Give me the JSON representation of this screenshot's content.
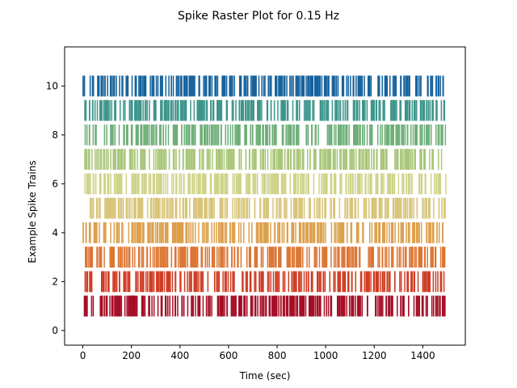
{
  "chart_data": {
    "type": "raster",
    "title": "Spike Raster Plot for 0.15 Hz",
    "xlabel": "Time (sec)",
    "ylabel": "Example Spike Trains",
    "xlim": [
      -75,
      1575
    ],
    "ylim": [
      -0.6,
      11.6
    ],
    "xticks": [
      0,
      200,
      400,
      600,
      800,
      1000,
      1200,
      1400
    ],
    "yticks": [
      0,
      2,
      4,
      6,
      8,
      10
    ],
    "line_length": 0.85,
    "grid": false,
    "legend": "none",
    "trains": [
      {
        "offset": 1,
        "color": "#a50f26",
        "n_spikes": 300,
        "t_start": 5,
        "t_end": 1495,
        "seed": 11
      },
      {
        "offset": 2,
        "color": "#cf3d24",
        "n_spikes": 250,
        "t_start": 2,
        "t_end": 1495,
        "seed": 23
      },
      {
        "offset": 3,
        "color": "#dc7634",
        "n_spikes": 290,
        "t_start": 0,
        "t_end": 1495,
        "seed": 37
      },
      {
        "offset": 4,
        "color": "#dca04c",
        "n_spikes": 270,
        "t_start": 0,
        "t_end": 1495,
        "seed": 41
      },
      {
        "offset": 5,
        "color": "#d8c57a",
        "n_spikes": 280,
        "t_start": 25,
        "t_end": 1495,
        "seed": 53
      },
      {
        "offset": 6,
        "color": "#cfd388",
        "n_spikes": 280,
        "t_start": 5,
        "t_end": 1495,
        "seed": 67
      },
      {
        "offset": 7,
        "color": "#a9c67a",
        "n_spikes": 280,
        "t_start": 0,
        "t_end": 1495,
        "seed": 71
      },
      {
        "offset": 8,
        "color": "#6eaf78",
        "n_spikes": 270,
        "t_start": 5,
        "t_end": 1495,
        "seed": 83
      },
      {
        "offset": 9,
        "color": "#3e958b",
        "n_spikes": 280,
        "t_start": 0,
        "t_end": 1490,
        "seed": 97
      },
      {
        "offset": 10,
        "color": "#17629c",
        "n_spikes": 300,
        "t_start": 0,
        "t_end": 1495,
        "seed": 101
      }
    ]
  }
}
